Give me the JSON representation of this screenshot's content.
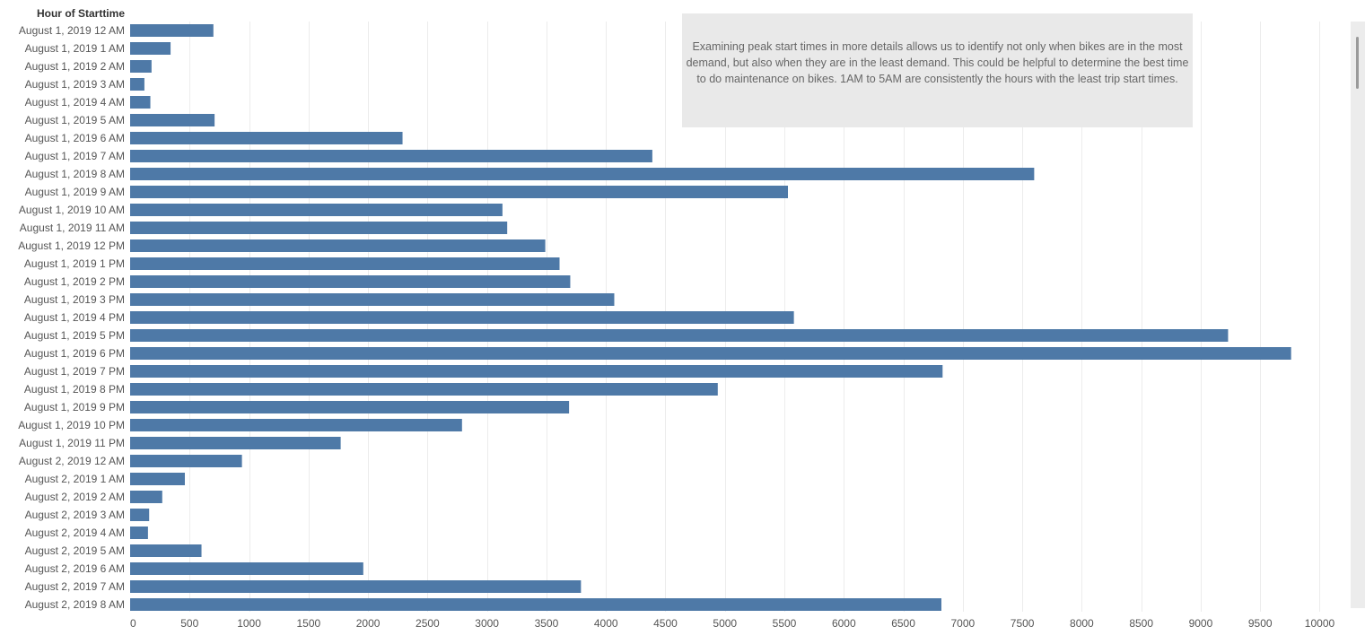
{
  "chart_data": {
    "type": "bar",
    "orientation": "horizontal",
    "row_header": "Hour of Starttime",
    "categories": [
      "August 1, 2019 12 AM",
      "August 1, 2019 1 AM",
      "August 1, 2019 2 AM",
      "August 1, 2019 3 AM",
      "August 1, 2019 4 AM",
      "August 1, 2019 5 AM",
      "August 1, 2019 6 AM",
      "August 1, 2019 7 AM",
      "August 1, 2019 8 AM",
      "August 1, 2019 9 AM",
      "August 1, 2019 10 AM",
      "August 1, 2019 11 AM",
      "August 1, 2019 12 PM",
      "August 1, 2019 1 PM",
      "August 1, 2019 2 PM",
      "August 1, 2019 3 PM",
      "August 1, 2019 4 PM",
      "August 1, 2019 5 PM",
      "August 1, 2019 6 PM",
      "August 1, 2019 7 PM",
      "August 1, 2019 8 PM",
      "August 1, 2019 9 PM",
      "August 1, 2019 10 PM",
      "August 1, 2019 11 PM",
      "August 2, 2019 12 AM",
      "August 2, 2019 1 AM",
      "August 2, 2019 2 AM",
      "August 2, 2019 3 AM",
      "August 2, 2019 4 AM",
      "August 2, 2019 5 AM",
      "August 2, 2019 6 AM",
      "August 2, 2019 7 AM",
      "August 2, 2019 8 AM"
    ],
    "values": [
      700,
      340,
      180,
      120,
      170,
      710,
      2290,
      4390,
      7600,
      5530,
      3130,
      3170,
      3490,
      3610,
      3700,
      4070,
      5580,
      9230,
      9760,
      6830,
      4940,
      3690,
      2790,
      1770,
      940,
      460,
      270,
      160,
      150,
      600,
      1960,
      3790,
      6820
    ],
    "xlim": [
      0,
      10200
    ],
    "xticks": [
      0,
      500,
      1000,
      1500,
      2000,
      2500,
      3000,
      3500,
      4000,
      4500,
      5000,
      5500,
      6000,
      6500,
      7000,
      7500,
      8000,
      8500,
      9000,
      9500,
      10000
    ],
    "xlabel": "",
    "ylabel": "",
    "grid": true,
    "bar_color": "#4e79a7"
  },
  "annotation": {
    "text": "Examining peak start times in more details allows us to identify not only when bikes are in the most demand, but also when they are in the least demand. This could be helpful to determine the best time to do maintenance on bikes. 1AM to 5AM are consistently the hours with the least trip start times."
  },
  "colors": {
    "bar": "#4e79a7",
    "grid": "#ececec",
    "text": "#555555",
    "annotation_bg": "#e9e9e9"
  }
}
